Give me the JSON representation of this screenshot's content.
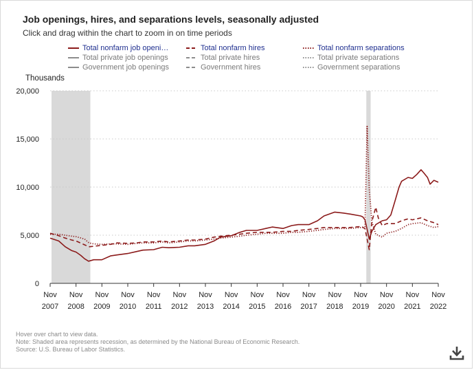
{
  "header": {
    "title": "Job openings, hires, and separations levels, seasonally adjusted",
    "subtitle": "Click and drag within the chart to zoom in on time periods"
  },
  "legend": {
    "items": [
      {
        "label": "Total nonfarm job openin...",
        "style": "solid",
        "active": true
      },
      {
        "label": "Total nonfarm hires",
        "style": "dashed",
        "active": true
      },
      {
        "label": "Total nonfarm separations",
        "style": "dotted",
        "active": true
      },
      {
        "label": "Total private job openings",
        "style": "solid",
        "active": false
      },
      {
        "label": "Total private hires",
        "style": "dashed",
        "active": false
      },
      {
        "label": "Total private separations",
        "style": "dotted",
        "active": false
      },
      {
        "label": "Government job openings",
        "style": "solid",
        "active": false
      },
      {
        "label": "Government hires",
        "style": "dashed",
        "active": false
      },
      {
        "label": "Government separations",
        "style": "dotted",
        "active": false
      }
    ]
  },
  "colors": {
    "active_series": "#8b1a1a",
    "inactive_series": "#8c8c8c",
    "recession": "#d9d9d9",
    "grid": "#c8c8c8"
  },
  "chart_data": {
    "type": "line",
    "ylabel": "Thousands",
    "ylim": [
      0,
      20000
    ],
    "yticks": [
      0,
      5000,
      10000,
      15000,
      20000
    ],
    "ytick_labels": [
      "0",
      "5,000",
      "10,000",
      "15,000",
      "20,000"
    ],
    "xlim": [
      2007.917,
      2022.917
    ],
    "xticks": [
      {
        "x": 2007.917,
        "line1": "Nov",
        "line2": "2007"
      },
      {
        "x": 2008.917,
        "line1": "Nov",
        "line2": "2008"
      },
      {
        "x": 2009.917,
        "line1": "Nov",
        "line2": "2009"
      },
      {
        "x": 2010.917,
        "line1": "Nov",
        "line2": "2010"
      },
      {
        "x": 2011.917,
        "line1": "Nov",
        "line2": "2011"
      },
      {
        "x": 2012.917,
        "line1": "Nov",
        "line2": "2012"
      },
      {
        "x": 2013.917,
        "line1": "Nov",
        "line2": "2013"
      },
      {
        "x": 2014.917,
        "line1": "Nov",
        "line2": "2014"
      },
      {
        "x": 2015.917,
        "line1": "Nov",
        "line2": "2015"
      },
      {
        "x": 2016.917,
        "line1": "Nov",
        "line2": "2016"
      },
      {
        "x": 2017.917,
        "line1": "Nov",
        "line2": "2017"
      },
      {
        "x": 2018.917,
        "line1": "Nov",
        "line2": "2018"
      },
      {
        "x": 2019.917,
        "line1": "Nov",
        "line2": "2019"
      },
      {
        "x": 2020.917,
        "line1": "Nov",
        "line2": "2020"
      },
      {
        "x": 2021.917,
        "line1": "Nov",
        "line2": "2021"
      },
      {
        "x": 2022.917,
        "line1": "Nov",
        "line2": "2022"
      }
    ],
    "recessions": [
      [
        2007.917,
        2009.417
      ],
      [
        2020.083,
        2020.25
      ]
    ],
    "series": [
      {
        "name": "Total nonfarm job openings",
        "style": "solid",
        "points": [
          [
            2007.917,
            4700
          ],
          [
            2008.25,
            4400
          ],
          [
            2008.5,
            3800
          ],
          [
            2008.75,
            3400
          ],
          [
            2008.917,
            3250
          ],
          [
            2009.1,
            2900
          ],
          [
            2009.25,
            2550
          ],
          [
            2009.4,
            2300
          ],
          [
            2009.6,
            2450
          ],
          [
            2009.917,
            2450
          ],
          [
            2010.25,
            2850
          ],
          [
            2010.5,
            2950
          ],
          [
            2010.917,
            3100
          ],
          [
            2011.25,
            3300
          ],
          [
            2011.5,
            3450
          ],
          [
            2011.917,
            3500
          ],
          [
            2012.25,
            3750
          ],
          [
            2012.5,
            3700
          ],
          [
            2012.917,
            3750
          ],
          [
            2013.25,
            3900
          ],
          [
            2013.5,
            3900
          ],
          [
            2013.917,
            4050
          ],
          [
            2014.25,
            4400
          ],
          [
            2014.5,
            4800
          ],
          [
            2014.917,
            4950
          ],
          [
            2015.25,
            5300
          ],
          [
            2015.5,
            5500
          ],
          [
            2015.917,
            5500
          ],
          [
            2016.25,
            5700
          ],
          [
            2016.5,
            5850
          ],
          [
            2016.917,
            5700
          ],
          [
            2017.25,
            6000
          ],
          [
            2017.5,
            6100
          ],
          [
            2017.917,
            6100
          ],
          [
            2018.25,
            6500
          ],
          [
            2018.5,
            7000
          ],
          [
            2018.917,
            7400
          ],
          [
            2019.25,
            7300
          ],
          [
            2019.5,
            7200
          ],
          [
            2019.917,
            7000
          ],
          [
            2020.0,
            6900
          ],
          [
            2020.083,
            6600
          ],
          [
            2020.25,
            4600
          ],
          [
            2020.35,
            5400
          ],
          [
            2020.5,
            6100
          ],
          [
            2020.75,
            6500
          ],
          [
            2020.917,
            6600
          ],
          [
            2021.083,
            7100
          ],
          [
            2021.25,
            8600
          ],
          [
            2021.4,
            10000
          ],
          [
            2021.5,
            10600
          ],
          [
            2021.75,
            11000
          ],
          [
            2021.917,
            10900
          ],
          [
            2022.083,
            11300
          ],
          [
            2022.25,
            11800
          ],
          [
            2022.35,
            11500
          ],
          [
            2022.5,
            11000
          ],
          [
            2022.6,
            10300
          ],
          [
            2022.75,
            10700
          ],
          [
            2022.917,
            10500
          ]
        ]
      },
      {
        "name": "Total nonfarm hires",
        "style": "dashed",
        "points": [
          [
            2007.917,
            5200
          ],
          [
            2008.25,
            4950
          ],
          [
            2008.5,
            4700
          ],
          [
            2008.75,
            4500
          ],
          [
            2008.917,
            4400
          ],
          [
            2009.25,
            4000
          ],
          [
            2009.417,
            3800
          ],
          [
            2009.6,
            3850
          ],
          [
            2009.917,
            3950
          ],
          [
            2010.25,
            4050
          ],
          [
            2010.5,
            4200
          ],
          [
            2010.917,
            4150
          ],
          [
            2011.25,
            4200
          ],
          [
            2011.5,
            4300
          ],
          [
            2011.917,
            4300
          ],
          [
            2012.25,
            4400
          ],
          [
            2012.5,
            4300
          ],
          [
            2012.917,
            4400
          ],
          [
            2013.25,
            4500
          ],
          [
            2013.5,
            4500
          ],
          [
            2013.917,
            4600
          ],
          [
            2014.25,
            4800
          ],
          [
            2014.5,
            4900
          ],
          [
            2014.917,
            5000
          ],
          [
            2015.25,
            5100
          ],
          [
            2015.5,
            5200
          ],
          [
            2015.917,
            5300
          ],
          [
            2016.25,
            5300
          ],
          [
            2016.5,
            5300
          ],
          [
            2016.917,
            5400
          ],
          [
            2017.25,
            5400
          ],
          [
            2017.5,
            5500
          ],
          [
            2017.917,
            5600
          ],
          [
            2018.25,
            5700
          ],
          [
            2018.5,
            5800
          ],
          [
            2018.917,
            5800
          ],
          [
            2019.25,
            5800
          ],
          [
            2019.5,
            5800
          ],
          [
            2019.917,
            5900
          ],
          [
            2020.083,
            5700
          ],
          [
            2020.25,
            3500
          ],
          [
            2020.35,
            6400
          ],
          [
            2020.5,
            7900
          ],
          [
            2020.6,
            6800
          ],
          [
            2020.75,
            6000
          ],
          [
            2020.917,
            6200
          ],
          [
            2021.25,
            6200
          ],
          [
            2021.5,
            6500
          ],
          [
            2021.75,
            6700
          ],
          [
            2021.917,
            6600
          ],
          [
            2022.25,
            6800
          ],
          [
            2022.5,
            6500
          ],
          [
            2022.75,
            6300
          ],
          [
            2022.917,
            6100
          ]
        ]
      },
      {
        "name": "Total nonfarm separations",
        "style": "dotted",
        "points": [
          [
            2007.917,
            5100
          ],
          [
            2008.25,
            5100
          ],
          [
            2008.5,
            5000
          ],
          [
            2008.75,
            4900
          ],
          [
            2008.917,
            4850
          ],
          [
            2009.25,
            4600
          ],
          [
            2009.417,
            4200
          ],
          [
            2009.6,
            4100
          ],
          [
            2009.917,
            4050
          ],
          [
            2010.25,
            4100
          ],
          [
            2010.5,
            4100
          ],
          [
            2010.917,
            4050
          ],
          [
            2011.25,
            4150
          ],
          [
            2011.5,
            4200
          ],
          [
            2011.917,
            4200
          ],
          [
            2012.25,
            4300
          ],
          [
            2012.5,
            4200
          ],
          [
            2012.917,
            4300
          ],
          [
            2013.25,
            4400
          ],
          [
            2013.5,
            4400
          ],
          [
            2013.917,
            4500
          ],
          [
            2014.25,
            4600
          ],
          [
            2014.5,
            4700
          ],
          [
            2014.917,
            4800
          ],
          [
            2015.25,
            4900
          ],
          [
            2015.5,
            5000
          ],
          [
            2015.917,
            5100
          ],
          [
            2016.25,
            5200
          ],
          [
            2016.5,
            5200
          ],
          [
            2016.917,
            5200
          ],
          [
            2017.25,
            5300
          ],
          [
            2017.5,
            5300
          ],
          [
            2017.917,
            5400
          ],
          [
            2018.25,
            5500
          ],
          [
            2018.5,
            5600
          ],
          [
            2018.917,
            5700
          ],
          [
            2019.25,
            5700
          ],
          [
            2019.5,
            5700
          ],
          [
            2019.917,
            5800
          ],
          [
            2020.083,
            5900
          ],
          [
            2020.167,
            16300
          ],
          [
            2020.25,
            9800
          ],
          [
            2020.35,
            6400
          ],
          [
            2020.5,
            5100
          ],
          [
            2020.75,
            4800
          ],
          [
            2020.917,
            5200
          ],
          [
            2021.25,
            5400
          ],
          [
            2021.5,
            5700
          ],
          [
            2021.75,
            6100
          ],
          [
            2021.917,
            6200
          ],
          [
            2022.25,
            6300
          ],
          [
            2022.5,
            6000
          ],
          [
            2022.75,
            5800
          ],
          [
            2022.917,
            5900
          ]
        ]
      }
    ]
  },
  "notes": {
    "hover": "Hover over chart to view data.",
    "note": "Note: Shaded area represents recession, as determined by the National Bureau of Economic Research.",
    "source": "Source: U.S. Bureau of Labor Statistics."
  },
  "icons": {
    "download": "download-icon"
  }
}
